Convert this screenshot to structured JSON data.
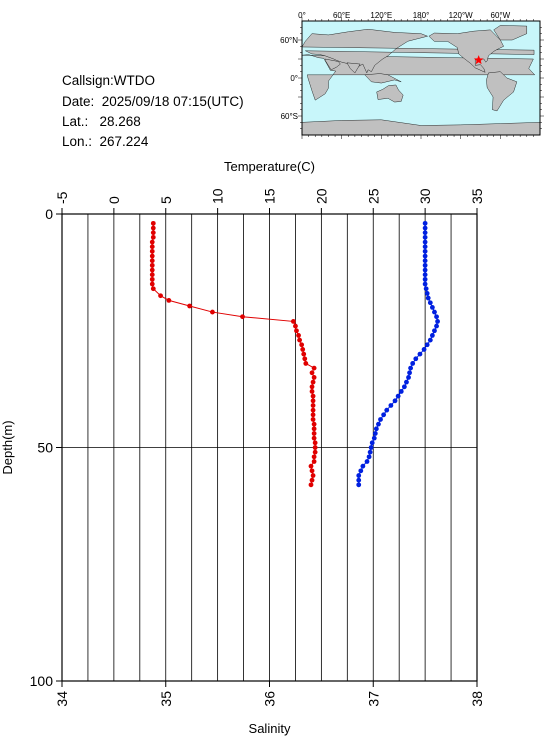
{
  "info": {
    "callsign": "Callsign:WTDO",
    "date": "Date:  2025/09/18 07:15(UTC)",
    "lat": "Lat.:   28.268",
    "lon": "Lon.:  267.224"
  },
  "map": {
    "top_labels": [
      "0°",
      "60°E",
      "120°E",
      "180°",
      "120°W",
      "60°W"
    ],
    "left_labels": [
      "60°N",
      "0°",
      "60°S"
    ],
    "ocean_color": "#c8f6fa",
    "land_color": "#c0c0c0",
    "marker_icon": "star-icon",
    "marker_color": "#ff0000",
    "marker_lat": 28.268,
    "marker_lon": 267.224
  },
  "chart_data": {
    "type": "line",
    "top_axis": {
      "label": "Temperature(C)",
      "range": [
        -5,
        35
      ],
      "ticks": [
        -5,
        0,
        5,
        10,
        15,
        20,
        25,
        30,
        35
      ]
    },
    "bottom_axis": {
      "label": "Salinity",
      "range": [
        34,
        38
      ],
      "ticks": [
        34,
        35,
        36,
        37,
        38
      ]
    },
    "y_axis": {
      "label": "Depth(m)",
      "range": [
        0,
        100
      ],
      "ticks": [
        0,
        50,
        100
      ],
      "inverted": true
    },
    "grid": true,
    "series": [
      {
        "axis": "temperature",
        "color": "#e00000",
        "connected": true,
        "points": [
          [
            3.8,
            2
          ],
          [
            3.8,
            3
          ],
          [
            3.8,
            4
          ],
          [
            3.8,
            5
          ],
          [
            3.7,
            6
          ],
          [
            3.7,
            7
          ],
          [
            3.7,
            8
          ],
          [
            3.7,
            9
          ],
          [
            3.7,
            10
          ],
          [
            3.7,
            11
          ],
          [
            3.7,
            12
          ],
          [
            3.7,
            13
          ],
          [
            3.7,
            14
          ],
          [
            3.7,
            15
          ],
          [
            3.8,
            16
          ],
          [
            4.5,
            17.5
          ],
          [
            5.3,
            18.5
          ],
          [
            7.3,
            19.7
          ],
          [
            9.5,
            21
          ],
          [
            12.4,
            22
          ],
          [
            17.3,
            23
          ],
          [
            17.5,
            24
          ],
          [
            17.6,
            25
          ],
          [
            17.8,
            26
          ],
          [
            17.9,
            27
          ],
          [
            18.1,
            28
          ],
          [
            18.2,
            29
          ],
          [
            18.3,
            30
          ],
          [
            18.4,
            31
          ],
          [
            18.5,
            32
          ],
          [
            19.3,
            33
          ],
          [
            19.1,
            34
          ],
          [
            19.3,
            35
          ],
          [
            19.2,
            36
          ],
          [
            19.1,
            37
          ],
          [
            19.1,
            38
          ],
          [
            19.2,
            39
          ],
          [
            19.2,
            40
          ],
          [
            19.2,
            41
          ],
          [
            19.2,
            42
          ],
          [
            19.2,
            43
          ],
          [
            19.2,
            44
          ],
          [
            19.3,
            45
          ],
          [
            19.3,
            46
          ],
          [
            19.3,
            47
          ],
          [
            19.3,
            48
          ],
          [
            19.4,
            49
          ],
          [
            19.4,
            50
          ],
          [
            19.4,
            51
          ],
          [
            19.3,
            52
          ],
          [
            19.3,
            53
          ],
          [
            19.0,
            54
          ],
          [
            19.1,
            55
          ],
          [
            19.2,
            56
          ],
          [
            19.1,
            57
          ],
          [
            19.0,
            58
          ]
        ]
      },
      {
        "axis": "salinity",
        "color": "#0020e0",
        "connected": true,
        "points": [
          [
            37.5,
            2
          ],
          [
            37.5,
            3
          ],
          [
            37.5,
            4
          ],
          [
            37.5,
            5
          ],
          [
            37.5,
            6
          ],
          [
            37.5,
            7
          ],
          [
            37.5,
            8
          ],
          [
            37.5,
            9
          ],
          [
            37.5,
            10
          ],
          [
            37.5,
            11
          ],
          [
            37.5,
            12
          ],
          [
            37.5,
            13
          ],
          [
            37.5,
            14
          ],
          [
            37.5,
            15
          ],
          [
            37.51,
            16
          ],
          [
            37.52,
            17
          ],
          [
            37.53,
            18
          ],
          [
            37.55,
            19
          ],
          [
            37.57,
            20
          ],
          [
            37.59,
            21
          ],
          [
            37.61,
            22
          ],
          [
            37.62,
            23
          ],
          [
            37.61,
            24
          ],
          [
            37.59,
            25
          ],
          [
            37.57,
            26
          ],
          [
            37.55,
            27
          ],
          [
            37.52,
            28
          ],
          [
            37.49,
            29
          ],
          [
            37.45,
            30
          ],
          [
            37.41,
            31
          ],
          [
            37.38,
            32
          ],
          [
            37.36,
            33
          ],
          [
            37.35,
            34
          ],
          [
            37.34,
            35
          ],
          [
            37.32,
            36
          ],
          [
            37.3,
            37
          ],
          [
            37.27,
            38
          ],
          [
            37.24,
            39
          ],
          [
            37.21,
            40
          ],
          [
            37.17,
            41
          ],
          [
            37.13,
            42
          ],
          [
            37.1,
            43
          ],
          [
            37.07,
            44
          ],
          [
            37.05,
            45
          ],
          [
            37.03,
            46
          ],
          [
            37.02,
            47
          ],
          [
            37.01,
            48
          ],
          [
            36.99,
            49
          ],
          [
            36.98,
            50
          ],
          [
            36.97,
            51
          ],
          [
            36.96,
            52
          ],
          [
            36.94,
            53
          ],
          [
            36.9,
            54
          ],
          [
            36.88,
            55
          ],
          [
            36.86,
            56
          ],
          [
            36.86,
            57
          ],
          [
            36.86,
            58
          ]
        ]
      }
    ]
  }
}
